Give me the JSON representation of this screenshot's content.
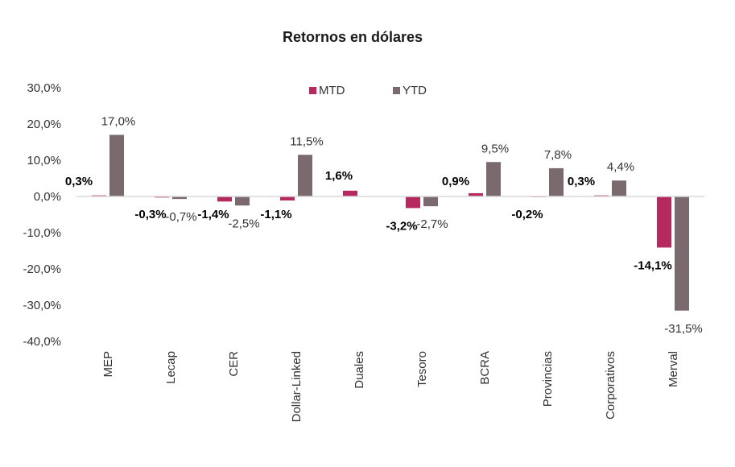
{
  "chart_data": {
    "type": "bar",
    "title": "Retornos en dólares",
    "categories": [
      "MEP",
      "Lecap",
      "CER",
      "Dollar-Linked",
      "Duales",
      "Tesoro",
      "BCRA",
      "Provincias",
      "Corporativos",
      "Merval"
    ],
    "series": [
      {
        "name": "MTD",
        "color": "#b5295e",
        "values": [
          0.3,
          -0.3,
          -1.4,
          -1.1,
          1.6,
          -3.2,
          0.9,
          -0.2,
          0.3,
          -14.1
        ],
        "labels": [
          "0,3%",
          "-0,3%",
          "-1,4%",
          "-1,1%",
          "1,6%",
          "-3,2%",
          "0,9%",
          "-0,2%",
          "0,3%",
          "-14,1%"
        ]
      },
      {
        "name": "YTD",
        "color": "#7a6a6e",
        "values": [
          17.0,
          -0.7,
          -2.5,
          11.5,
          null,
          -2.7,
          9.5,
          7.8,
          4.4,
          -31.5
        ],
        "labels": [
          "17,0%",
          "-0,7%",
          "-2,5%",
          "11,5%",
          null,
          "-2,7%",
          "9,5%",
          "7,8%",
          "4,4%",
          "-31,5%"
        ]
      }
    ],
    "ylim": [
      -40,
      30
    ],
    "yticks": [
      30,
      20,
      10,
      0,
      -10,
      -20,
      -30,
      -40
    ],
    "ytick_labels": [
      "30,0%",
      "20,0%",
      "10,0%",
      "0,0%",
      "-10,0%",
      "-20,0%",
      "-30,0%",
      "-40,0%"
    ],
    "grid": false,
    "legend": "top-center",
    "xlabel": "",
    "ylabel": ""
  }
}
